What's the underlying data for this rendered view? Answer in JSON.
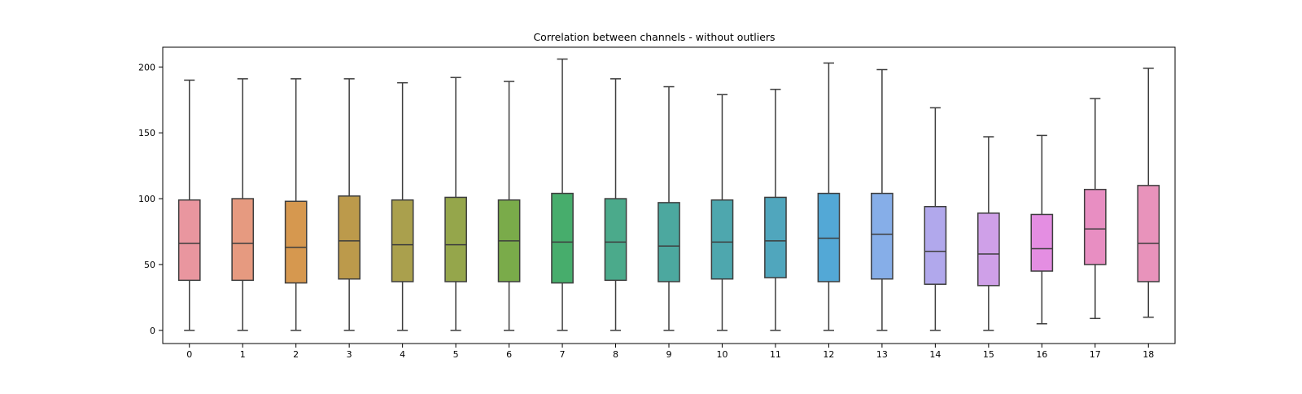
{
  "chart_data": {
    "type": "box",
    "title": "Correlation between channels - without outliers",
    "xlabel": "",
    "ylabel": "",
    "categories": [
      "0",
      "1",
      "2",
      "3",
      "4",
      "5",
      "6",
      "7",
      "8",
      "9",
      "10",
      "11",
      "12",
      "13",
      "14",
      "15",
      "16",
      "17",
      "18"
    ],
    "yticks": [
      "0",
      "50",
      "100",
      "150",
      "200"
    ],
    "ylim": [
      -10,
      215
    ],
    "grid": false,
    "colors": [
      "#e9969f",
      "#e69a80",
      "#d6984f",
      "#bc9a4b",
      "#aaa04d",
      "#95a64b",
      "#7aab4a",
      "#47ad6c",
      "#4baa8b",
      "#4ca89f",
      "#4ea7ae",
      "#50a6bd",
      "#53a8d6",
      "#86aee8",
      "#b1a8ec",
      "#cfa0e8",
      "#e48ee2",
      "#e88ec2",
      "#e893bb"
    ],
    "boxes": [
      {
        "min": 0,
        "q1": 38,
        "median": 66,
        "q3": 99,
        "max": 190
      },
      {
        "min": 0,
        "q1": 38,
        "median": 66,
        "q3": 100,
        "max": 191
      },
      {
        "min": 0,
        "q1": 36,
        "median": 63,
        "q3": 98,
        "max": 191
      },
      {
        "min": 0,
        "q1": 39,
        "median": 68,
        "q3": 102,
        "max": 191
      },
      {
        "min": 0,
        "q1": 37,
        "median": 65,
        "q3": 99,
        "max": 188
      },
      {
        "min": 0,
        "q1": 37,
        "median": 65,
        "q3": 101,
        "max": 192
      },
      {
        "min": 0,
        "q1": 37,
        "median": 68,
        "q3": 99,
        "max": 189
      },
      {
        "min": 0,
        "q1": 36,
        "median": 67,
        "q3": 104,
        "max": 206
      },
      {
        "min": 0,
        "q1": 38,
        "median": 67,
        "q3": 100,
        "max": 191
      },
      {
        "min": 0,
        "q1": 37,
        "median": 64,
        "q3": 97,
        "max": 185
      },
      {
        "min": 0,
        "q1": 39,
        "median": 67,
        "q3": 99,
        "max": 179
      },
      {
        "min": 0,
        "q1": 40,
        "median": 68,
        "q3": 101,
        "max": 183
      },
      {
        "min": 0,
        "q1": 37,
        "median": 70,
        "q3": 104,
        "max": 203
      },
      {
        "min": 0,
        "q1": 39,
        "median": 73,
        "q3": 104,
        "max": 198
      },
      {
        "min": 0,
        "q1": 35,
        "median": 60,
        "q3": 94,
        "max": 169
      },
      {
        "min": 0,
        "q1": 34,
        "median": 58,
        "q3": 89,
        "max": 147
      },
      {
        "min": 5,
        "q1": 45,
        "median": 62,
        "q3": 88,
        "max": 148
      },
      {
        "min": 9,
        "q1": 50,
        "median": 77,
        "q3": 107,
        "max": 176
      },
      {
        "min": 10,
        "q1": 37,
        "median": 66,
        "q3": 110,
        "max": 199
      }
    ]
  }
}
